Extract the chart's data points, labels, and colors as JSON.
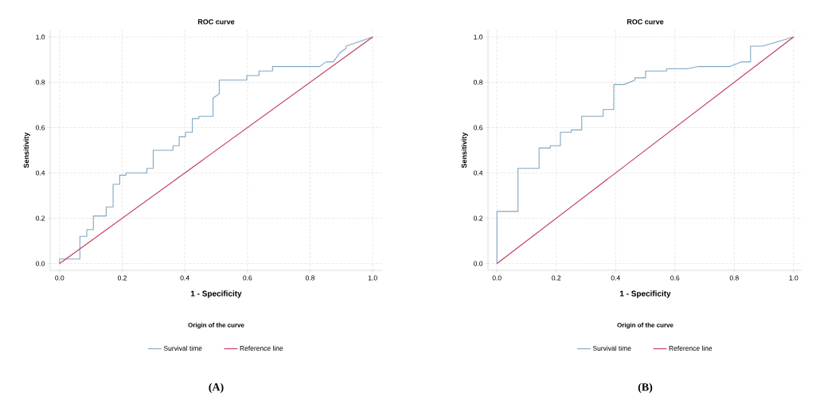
{
  "chart_data": [
    {
      "type": "line",
      "title": "ROC curve",
      "xlabel": "1 - Specificity",
      "ylabel": "Sensitivity",
      "legend_title": "Origin of the curve",
      "legend": "bottom",
      "grid": true,
      "xlim": [
        -0.03,
        1.03
      ],
      "ylim": [
        -0.03,
        1.03
      ],
      "xticks": [
        {
          "value": 0,
          "label": "0.0"
        },
        {
          "value": 0.2,
          "label": "0.2"
        },
        {
          "value": 0.4,
          "label": "0.4"
        },
        {
          "value": 0.6,
          "label": "0.6"
        },
        {
          "value": 0.8,
          "label": "0.8"
        },
        {
          "value": 1,
          "label": "1.0"
        }
      ],
      "yticks": [
        {
          "value": 0,
          "label": "0.0"
        },
        {
          "value": 0.2,
          "label": "0.2"
        },
        {
          "value": 0.4,
          "label": "0.4"
        },
        {
          "value": 0.6,
          "label": "0.6"
        },
        {
          "value": 0.8,
          "label": "0.8"
        },
        {
          "value": 1,
          "label": "1.0"
        }
      ],
      "series": [
        {
          "name": "Survival time",
          "color": "#7fa7c4",
          "x": [
            0,
            0,
            0.065,
            0.065,
            0.087,
            0.087,
            0.108,
            0.108,
            0.149,
            0.149,
            0.171,
            0.171,
            0.192,
            0.192,
            0.212,
            0.212,
            0.279,
            0.279,
            0.299,
            0.299,
            0.362,
            0.362,
            0.382,
            0.382,
            0.402,
            0.402,
            0.424,
            0.424,
            0.445,
            0.445,
            0.49,
            0.49,
            0.51,
            0.51,
            0.598,
            0.598,
            0.637,
            0.637,
            0.68,
            0.68,
            0.83,
            0.851,
            0.874,
            0.895,
            0.915,
            0.915,
            1
          ],
          "values": [
            0,
            0.02,
            0.02,
            0.12,
            0.12,
            0.15,
            0.15,
            0.21,
            0.21,
            0.25,
            0.25,
            0.35,
            0.35,
            0.39,
            0.39,
            0.4,
            0.4,
            0.42,
            0.42,
            0.5,
            0.5,
            0.52,
            0.52,
            0.56,
            0.56,
            0.58,
            0.58,
            0.64,
            0.64,
            0.65,
            0.65,
            0.73,
            0.75,
            0.81,
            0.81,
            0.83,
            0.83,
            0.85,
            0.85,
            0.87,
            0.87,
            0.89,
            0.89,
            0.93,
            0.95,
            0.96,
            1
          ]
        },
        {
          "name": "Reference line",
          "color": "#c0395a",
          "x": [
            0,
            1
          ],
          "values": [
            0,
            1
          ]
        }
      ],
      "annotations": [
        "(A)"
      ]
    },
    {
      "type": "line",
      "title": "ROC curve",
      "xlabel": "1 - Specificity",
      "ylabel": "Sensitivity",
      "legend_title": "Origin of the curve",
      "legend": "bottom",
      "grid": true,
      "xlim": [
        -0.03,
        1.03
      ],
      "ylim": [
        -0.03,
        1.03
      ],
      "xticks": [
        {
          "value": 0,
          "label": "0.0"
        },
        {
          "value": 0.2,
          "label": "0.2"
        },
        {
          "value": 0.4,
          "label": "0.4"
        },
        {
          "value": 0.6,
          "label": "0.6"
        },
        {
          "value": 0.8,
          "label": "0.8"
        },
        {
          "value": 1,
          "label": "1.0"
        }
      ],
      "yticks": [
        {
          "value": 0,
          "label": "0.0"
        },
        {
          "value": 0.2,
          "label": "0.2"
        },
        {
          "value": 0.4,
          "label": "0.4"
        },
        {
          "value": 0.6,
          "label": "0.6"
        },
        {
          "value": 0.8,
          "label": "0.8"
        },
        {
          "value": 1,
          "label": "1.0"
        }
      ],
      "series": [
        {
          "name": "Survival time",
          "color": "#7fa7c4",
          "x": [
            0,
            0,
            0.071,
            0.071,
            0.142,
            0.142,
            0.18,
            0.18,
            0.214,
            0.214,
            0.251,
            0.251,
            0.286,
            0.286,
            0.358,
            0.358,
            0.394,
            0.394,
            0.428,
            0.465,
            0.465,
            0.501,
            0.501,
            0.572,
            0.572,
            0.642,
            0.681,
            0.786,
            0.823,
            0.855,
            0.855,
            0.896,
            1
          ],
          "values": [
            0,
            0.23,
            0.23,
            0.42,
            0.42,
            0.51,
            0.51,
            0.52,
            0.52,
            0.58,
            0.58,
            0.59,
            0.59,
            0.65,
            0.65,
            0.68,
            0.68,
            0.79,
            0.79,
            0.81,
            0.82,
            0.82,
            0.85,
            0.85,
            0.86,
            0.86,
            0.87,
            0.87,
            0.89,
            0.89,
            0.96,
            0.96,
            1
          ]
        },
        {
          "name": "Reference line",
          "color": "#c0395a",
          "x": [
            0,
            1
          ],
          "values": [
            0,
            1
          ]
        }
      ],
      "annotations": [
        "(B)"
      ]
    }
  ]
}
